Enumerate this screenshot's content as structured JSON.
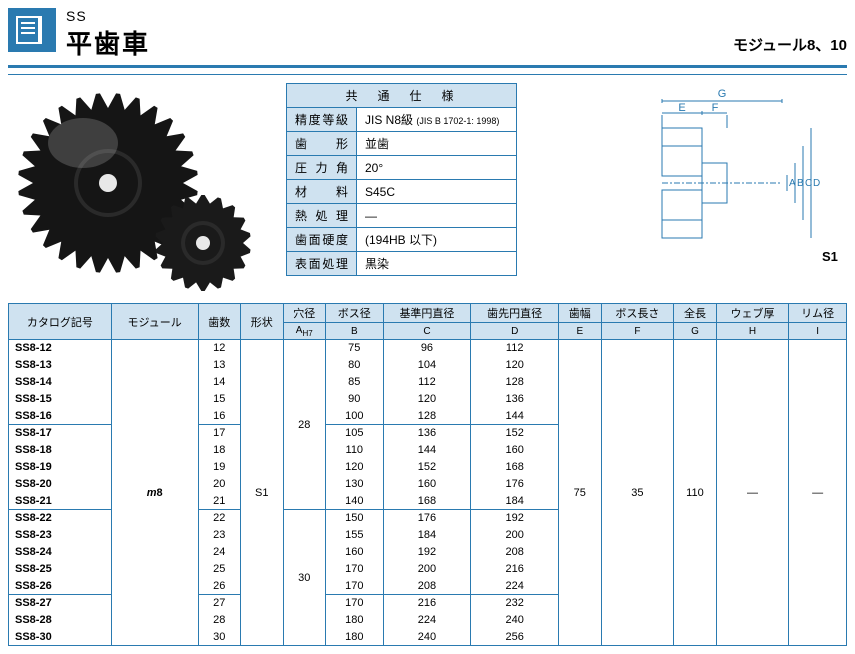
{
  "header": {
    "ss": "SS",
    "main": "平歯車",
    "right": "モジュール8、10"
  },
  "spec": {
    "title": "共　通　仕　様",
    "rows": [
      {
        "label": "精度等級",
        "value": "JIS N8級",
        "sub": "(JIS B 1702-1: 1998)"
      },
      {
        "label": "歯　　形",
        "value": "並歯"
      },
      {
        "label": "圧 力 角",
        "value": "20°"
      },
      {
        "label": "材　　料",
        "value": "S45C"
      },
      {
        "label": "熱 処 理",
        "value": "―"
      },
      {
        "label": "歯面硬度",
        "value": "(194HB 以下)"
      },
      {
        "label": "表面処理",
        "value": "黒染"
      }
    ]
  },
  "diagram_label": "S1",
  "columns": {
    "top": [
      "カタログ記号",
      "モジュール",
      "歯数",
      "形状",
      "穴径",
      "ボス径",
      "基準円直径",
      "歯先円直径",
      "歯幅",
      "ボス長さ",
      "全長",
      "ウェブ厚",
      "リム径"
    ],
    "sub": [
      "",
      "",
      "",
      "",
      "A",
      "B",
      "C",
      "D",
      "E",
      "F",
      "G",
      "H",
      "I"
    ],
    "a_sub": "H7"
  },
  "module_val": "m8",
  "shape_val": "S1",
  "common": {
    "e": "75",
    "f": "35",
    "g": "110",
    "h": "―",
    "i": "―"
  },
  "groups": [
    {
      "a": "28",
      "rows": [
        {
          "cat": "SS8-12",
          "n": "12",
          "b": "75",
          "c": "96",
          "d": "112"
        },
        {
          "cat": "SS8-13",
          "n": "13",
          "b": "80",
          "c": "104",
          "d": "120"
        },
        {
          "cat": "SS8-14",
          "n": "14",
          "b": "85",
          "c": "112",
          "d": "128"
        },
        {
          "cat": "SS8-15",
          "n": "15",
          "b": "90",
          "c": "120",
          "d": "136"
        },
        {
          "cat": "SS8-16",
          "n": "16",
          "b": "100",
          "c": "128",
          "d": "144"
        }
      ]
    },
    {
      "a": "",
      "rows": [
        {
          "cat": "SS8-17",
          "n": "17",
          "b": "105",
          "c": "136",
          "d": "152"
        },
        {
          "cat": "SS8-18",
          "n": "18",
          "b": "110",
          "c": "144",
          "d": "160"
        },
        {
          "cat": "SS8-19",
          "n": "19",
          "b": "120",
          "c": "152",
          "d": "168"
        },
        {
          "cat": "SS8-20",
          "n": "20",
          "b": "130",
          "c": "160",
          "d": "176"
        },
        {
          "cat": "SS8-21",
          "n": "21",
          "b": "140",
          "c": "168",
          "d": "184"
        }
      ]
    },
    {
      "a": "30",
      "rows": [
        {
          "cat": "SS8-22",
          "n": "22",
          "b": "150",
          "c": "176",
          "d": "192"
        },
        {
          "cat": "SS8-23",
          "n": "23",
          "b": "155",
          "c": "184",
          "d": "200"
        },
        {
          "cat": "SS8-24",
          "n": "24",
          "b": "160",
          "c": "192",
          "d": "208"
        },
        {
          "cat": "SS8-25",
          "n": "25",
          "b": "170",
          "c": "200",
          "d": "216"
        },
        {
          "cat": "SS8-26",
          "n": "26",
          "b": "170",
          "c": "208",
          "d": "224"
        }
      ]
    },
    {
      "a": "",
      "rows": [
        {
          "cat": "SS8-27",
          "n": "27",
          "b": "170",
          "c": "216",
          "d": "232"
        },
        {
          "cat": "SS8-28",
          "n": "28",
          "b": "180",
          "c": "224",
          "d": "240"
        },
        {
          "cat": "SS8-30",
          "n": "30",
          "b": "180",
          "c": "240",
          "d": "256"
        }
      ]
    }
  ],
  "colors": {
    "brand": "#2a7ab0",
    "header_bg": "#cfe2f0"
  }
}
